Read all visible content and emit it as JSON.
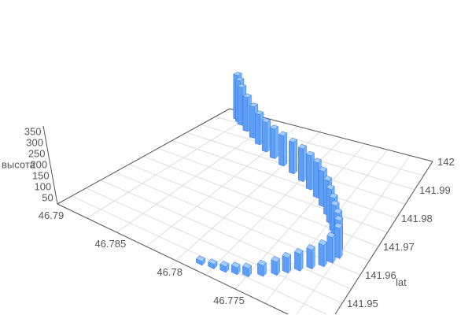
{
  "chart_data": {
    "type": "bar3D",
    "title": "",
    "x_axis": {
      "name": "",
      "range": [
        46.7675,
        46.79
      ],
      "ticks": [
        46.79,
        46.785,
        46.78,
        46.775
      ],
      "tick_labels": [
        "46.79",
        "46.785",
        "46.78",
        "46.775"
      ]
    },
    "y_axis": {
      "name": "lat",
      "range": [
        141.94,
        142.0
      ],
      "ticks": [
        142.0,
        141.99,
        141.98,
        141.97,
        141.96,
        141.95
      ],
      "tick_labels": [
        "142",
        "141.99",
        "141.98",
        "141.97",
        "141.96",
        "141.95"
      ]
    },
    "z_axis": {
      "name": "высота",
      "range": [
        0,
        350
      ],
      "ticks": [
        50,
        100,
        150,
        200,
        250,
        300,
        350
      ],
      "tick_labels": [
        "50",
        "100",
        "150",
        "200",
        "250",
        "300",
        "350"
      ]
    },
    "grid": true,
    "colors": {
      "bar": "#74b3ff",
      "bar_top": "#a3cdff",
      "bar_edge": "#3d7ee6",
      "axis": "#555555",
      "grid": "#dddddd"
    },
    "points": [
      [
        46.7785,
        141.943,
        30
      ],
      [
        46.7776,
        141.9436,
        35
      ],
      [
        46.7767,
        141.9442,
        45
      ],
      [
        46.7759,
        141.9451,
        55
      ],
      [
        46.7751,
        141.946,
        65
      ],
      [
        46.7742,
        141.9481,
        85
      ],
      [
        46.7734,
        141.9502,
        105
      ],
      [
        46.7728,
        141.9523,
        120
      ],
      [
        46.7721,
        141.9544,
        135
      ],
      [
        46.7714,
        141.9565,
        150
      ],
      [
        46.7707,
        141.9586,
        170
      ],
      [
        46.7703,
        141.9607,
        200
      ],
      [
        46.77,
        141.9628,
        240
      ],
      [
        46.7703,
        141.9646,
        250
      ],
      [
        46.7707,
        141.9664,
        255
      ],
      [
        46.7713,
        141.9682,
        260
      ],
      [
        46.7718,
        141.97,
        265
      ],
      [
        46.7725,
        141.9721,
        270
      ],
      [
        46.7732,
        141.9742,
        275
      ],
      [
        46.7741,
        141.9763,
        280
      ],
      [
        46.7751,
        141.9784,
        280
      ],
      [
        46.7762,
        141.9802,
        270
      ],
      [
        46.7774,
        141.982,
        260
      ],
      [
        46.7787,
        141.9835,
        250
      ],
      [
        46.7801,
        141.985,
        240
      ],
      [
        46.7814,
        141.9865,
        235
      ],
      [
        46.7826,
        141.988,
        235
      ],
      [
        46.7838,
        141.9898,
        240
      ],
      [
        46.7849,
        141.9916,
        250
      ],
      [
        46.7861,
        141.9934,
        270
      ],
      [
        46.7872,
        141.9952,
        300
      ],
      [
        46.7877,
        141.9961,
        330
      ],
      [
        46.7882,
        141.997,
        350
      ]
    ]
  }
}
